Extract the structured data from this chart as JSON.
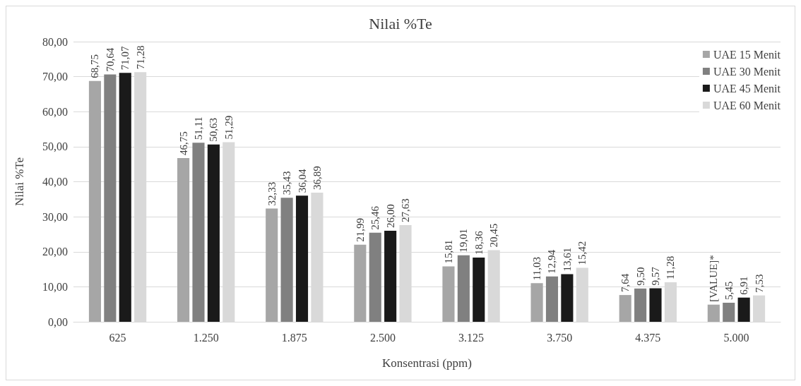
{
  "chart_data": {
    "type": "bar",
    "title": "Nilai %Te",
    "xlabel": "Konsentrasi (ppm)",
    "ylabel": "Nilai %Te",
    "categories": [
      "625",
      "1.250",
      "1.875",
      "2.500",
      "3.125",
      "3.750",
      "4.375",
      "5.000"
    ],
    "series": [
      {
        "name": "UAE 15 Menit",
        "color": "#a6a6a6",
        "values": [
          68.75,
          46.75,
          32.33,
          21.99,
          15.81,
          11.03,
          7.64,
          4.9
        ],
        "value_labels": [
          "68,75",
          "46,75",
          "32,33",
          "21,99",
          "15,81",
          "11,03",
          "7,64",
          "[VALUE]*"
        ]
      },
      {
        "name": "UAE 30 Menit",
        "color": "#808080",
        "values": [
          70.64,
          51.11,
          35.43,
          25.46,
          19.01,
          12.94,
          9.5,
          5.45
        ],
        "value_labels": [
          "70,64",
          "51,11",
          "35,43",
          "25,46",
          "19,01",
          "12,94",
          "9,50",
          "5,45"
        ]
      },
      {
        "name": "UAE 45 Menit",
        "color": "#1a1a1a",
        "values": [
          71.07,
          50.63,
          36.04,
          26.0,
          18.36,
          13.61,
          9.57,
          6.91
        ],
        "value_labels": [
          "71,07",
          "50,63",
          "36,04",
          "26,00",
          "18,36",
          "13,61",
          "9,57",
          "6,91"
        ]
      },
      {
        "name": "UAE 60 Menit",
        "color": "#d9d9d9",
        "values": [
          71.28,
          51.29,
          36.89,
          27.63,
          20.45,
          15.42,
          11.28,
          7.53
        ],
        "value_labels": [
          "71,28",
          "51,29",
          "36,89",
          "27,63",
          "20,45",
          "15,42",
          "11,28",
          "7,53"
        ]
      }
    ],
    "ylim": [
      0,
      80
    ],
    "yticks": [
      {
        "value": 0,
        "label": "0,00"
      },
      {
        "value": 10,
        "label": "10,00"
      },
      {
        "value": 20,
        "label": "20,00"
      },
      {
        "value": 30,
        "label": "30,00"
      },
      {
        "value": 40,
        "label": "40,00"
      },
      {
        "value": 50,
        "label": "50,00"
      },
      {
        "value": 60,
        "label": "60,00"
      },
      {
        "value": 70,
        "label": "70,00"
      },
      {
        "value": 80,
        "label": "80,00"
      }
    ],
    "grid": "y",
    "legend": "top right"
  }
}
